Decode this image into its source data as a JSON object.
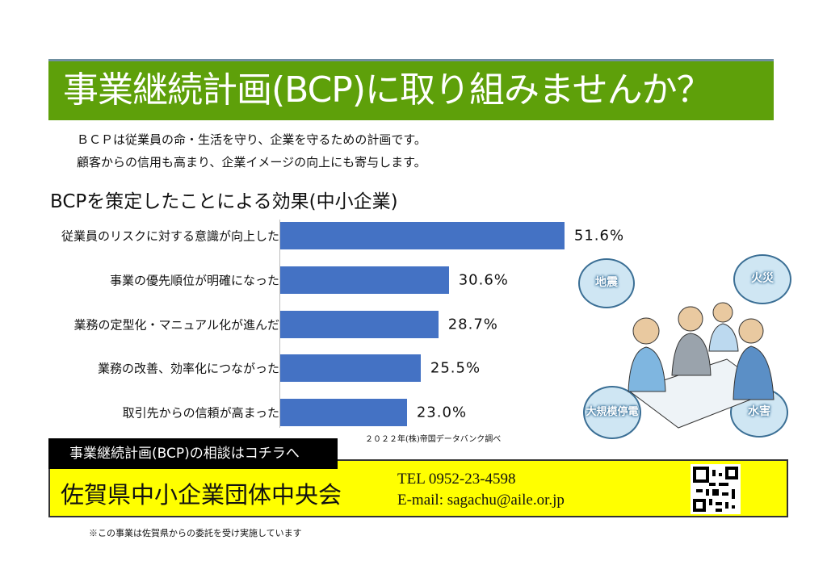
{
  "banner": {
    "title": "事業継続計画(BCP)に取り組みませんか？"
  },
  "intro": [
    "ＢＣＰは従業員の命・生活を守り、企業を守るための計画です。",
    "顧客からの信用も高まり、企業イメージの向上にも寄与します。"
  ],
  "chart_data": {
    "type": "bar",
    "orientation": "horizontal",
    "title": "BCPを策定したことによる効果(中小企業)",
    "categories": [
      "従業員のリスクに対する意識が向上した",
      "事業の優先順位が明確になった",
      "業務の定型化・マニュアル化が進んだ",
      "業務の改善、効率化につながった",
      "取引先からの信頼が高まった"
    ],
    "values": [
      51.6,
      30.6,
      28.7,
      25.5,
      23.0
    ],
    "value_labels": [
      "51.6%",
      "30.6%",
      "28.7%",
      "25.5%",
      "23.0%"
    ],
    "xlim": [
      0,
      60
    ],
    "color": "#4472c4",
    "source": "２０２２年(株)帝国データバンク調べ"
  },
  "illustration": {
    "bubbles": [
      "地震",
      "火災",
      "大規模停電",
      "水害"
    ]
  },
  "contact": {
    "heading": "事業継続計画(BCP)の相談はコチラへ",
    "org": "佐賀県中小企業団体中央会",
    "tel": "TEL 0952-23-4598",
    "email": "E-mail: sagachu@aile.or.jp"
  },
  "footnote": "※この事業は佐賀県からの委託を受け実施しています"
}
